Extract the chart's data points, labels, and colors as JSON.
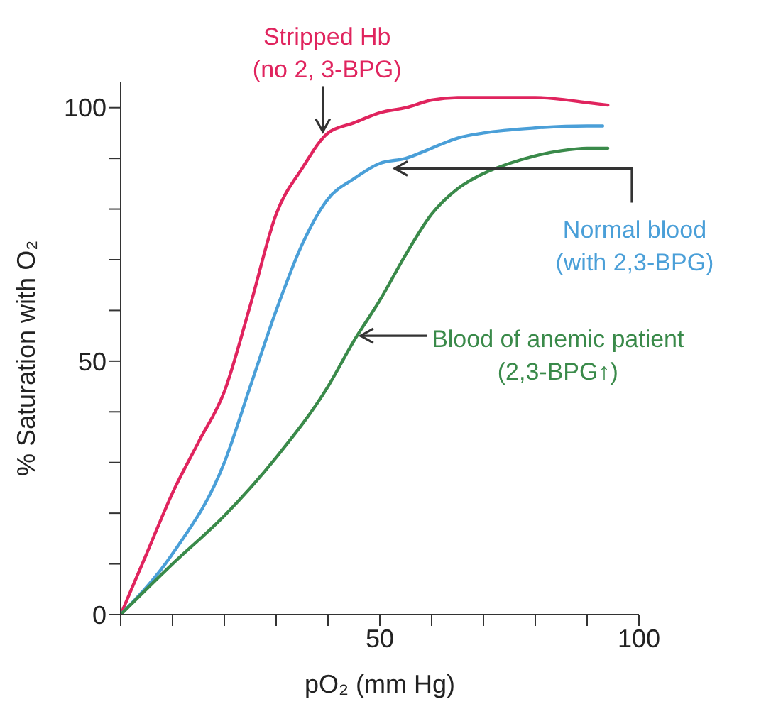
{
  "chart_data": {
    "type": "line",
    "xlabel": "pO₂ (mm Hg)",
    "ylabel": "% Saturation with O₂",
    "xlim": [
      0,
      100
    ],
    "ylim": [
      0,
      105
    ],
    "xticks": [
      {
        "value": 0,
        "label": null
      },
      {
        "value": 10,
        "label": null
      },
      {
        "value": 20,
        "label": null
      },
      {
        "value": 30,
        "label": null
      },
      {
        "value": 40,
        "label": null
      },
      50,
      {
        "value": 60,
        "label": null
      },
      {
        "value": 70,
        "label": null
      },
      {
        "value": 80,
        "label": null
      },
      {
        "value": 90,
        "label": null
      },
      100
    ],
    "yticks": [
      0,
      {
        "value": 10,
        "label": null
      },
      {
        "value": 20,
        "label": null
      },
      {
        "value": 30,
        "label": null
      },
      {
        "value": 40,
        "label": null
      },
      50,
      {
        "value": 60,
        "label": null
      },
      {
        "value": 70,
        "label": null
      },
      {
        "value": 80,
        "label": null
      },
      {
        "value": 90,
        "label": null
      },
      100
    ],
    "grid": false,
    "marker": "none",
    "line_style": "solid",
    "series": [
      {
        "color": "#e0245e",
        "x": [
          0,
          5,
          10,
          15,
          20,
          25,
          30,
          35,
          40,
          45,
          50,
          55,
          60,
          65,
          70,
          80,
          90,
          94
        ],
        "values": [
          0,
          12,
          24,
          34,
          44,
          61,
          79,
          88,
          95,
          97,
          99,
          100,
          101.5,
          102,
          102,
          102,
          101,
          100.5
        ]
      },
      {
        "color": "#4a9fd8",
        "x": [
          0,
          10,
          20,
          25,
          30,
          35,
          40,
          45,
          50,
          55,
          60,
          65,
          70,
          80,
          90,
          93
        ],
        "values": [
          0,
          12,
          30,
          45,
          60,
          73,
          82,
          86,
          89,
          90,
          92,
          94,
          95,
          96,
          96.4,
          96.4
        ]
      },
      {
        "color": "#3a8a4a",
        "x": [
          0,
          10,
          20,
          30,
          40,
          45,
          50,
          55,
          60,
          65,
          70,
          75,
          80,
          85,
          90,
          94
        ],
        "values": [
          0,
          10,
          19.5,
          31,
          45,
          54,
          62,
          71,
          79,
          84,
          87,
          89,
          90.5,
          91.5,
          92,
          92
        ]
      }
    ],
    "annotations": [
      {
        "text": "Stripped Hb\n(no 2, 3-BPG)",
        "x": 39,
        "y": 95
      },
      {
        "text": "Normal blood\n(with 2,3-BPG)",
        "x": 52.6,
        "y": 88
      },
      {
        "text": "Blood of anemic patient\n(2,3-BPG↑)",
        "x": 46,
        "y": 55
      }
    ]
  }
}
